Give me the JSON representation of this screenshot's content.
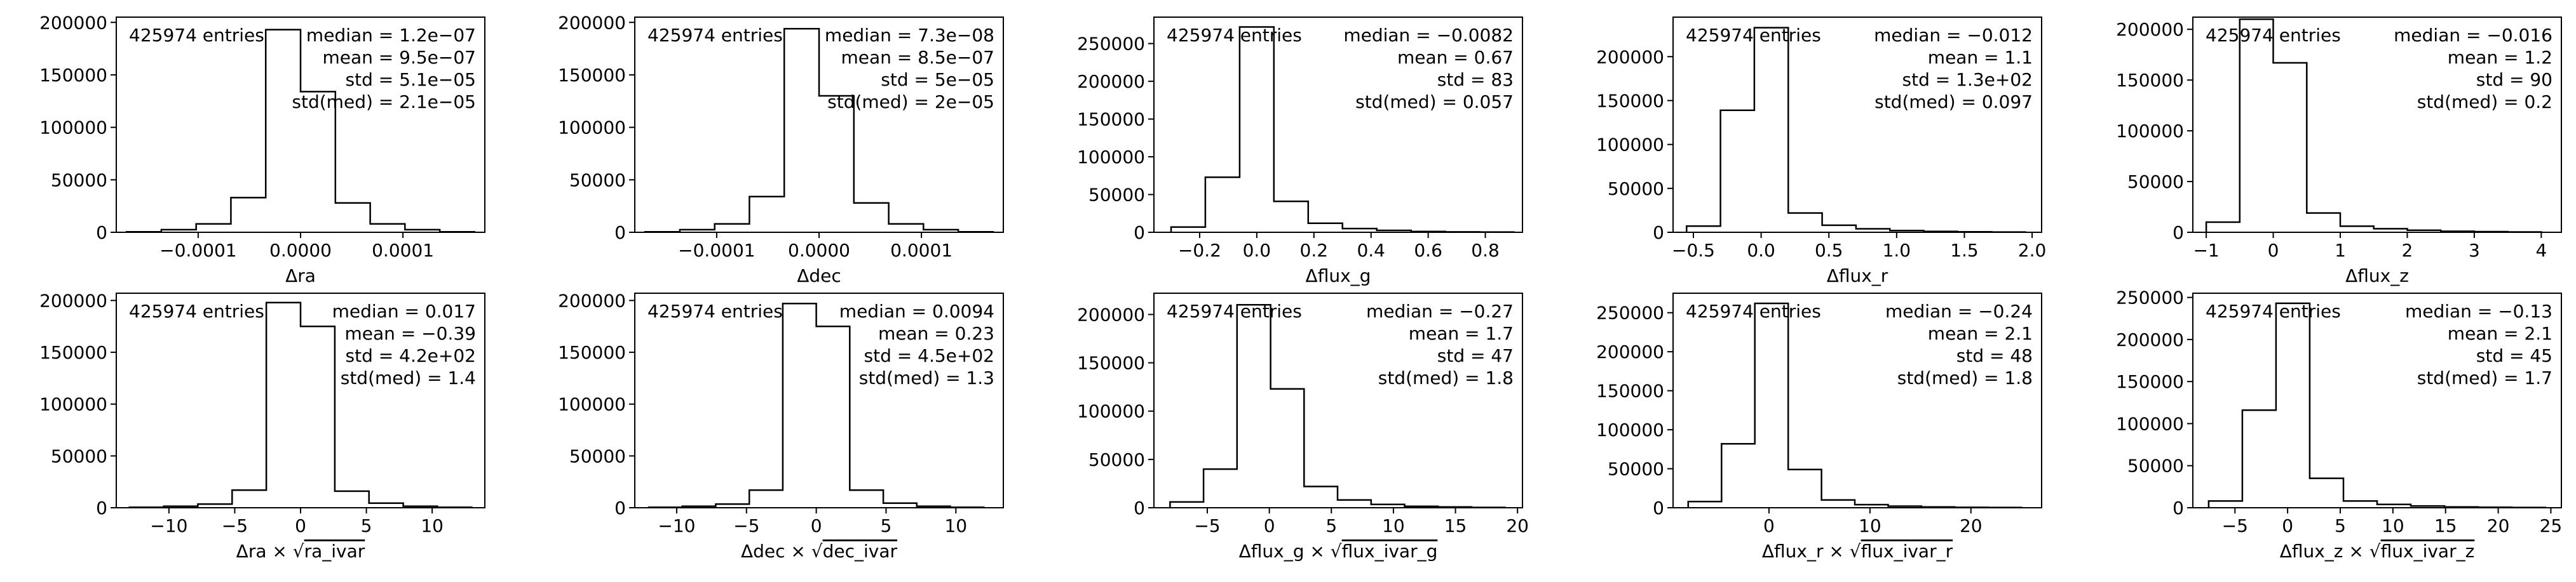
{
  "chart_data": [
    {
      "type": "histogram",
      "entries_label": "425974 entries",
      "stats": [
        "median = 1.2e−07",
        "mean = 9.5e−07",
        "std = 5.1e−05",
        "std(med) = 2.1e−05"
      ],
      "xlabel": "Δra",
      "xlim": [
        -0.00018,
        0.00018
      ],
      "ylim": [
        0,
        205000
      ],
      "xticks": [
        -0.0001,
        0.0,
        0.0001
      ],
      "xtick_labels": [
        "−0.0001",
        "0.0000",
        "0.0001"
      ],
      "yticks": [
        0,
        50000,
        100000,
        150000,
        200000
      ],
      "ytick_labels": [
        "0",
        "50000",
        "100000",
        "150000",
        "200000"
      ],
      "bin_edges": [
        -0.00017,
        -0.000136,
        -0.000102,
        -6.8e-05,
        -3.4e-05,
        0.0,
        3.4e-05,
        6.8e-05,
        0.000102,
        0.000136,
        0.00017
      ],
      "counts": [
        500,
        2500,
        8000,
        33000,
        193000,
        134000,
        28000,
        8000,
        2500,
        500
      ]
    },
    {
      "type": "histogram",
      "entries_label": "425974 entries",
      "stats": [
        "median = 7.3e−08",
        "mean = 8.5e−07",
        "std = 5e−05",
        "std(med) = 2e−05"
      ],
      "xlabel": "Δdec",
      "xlim": [
        -0.00018,
        0.00018
      ],
      "ylim": [
        0,
        205000
      ],
      "xticks": [
        -0.0001,
        0.0,
        0.0001
      ],
      "xtick_labels": [
        "−0.0001",
        "0.0000",
        "0.0001"
      ],
      "yticks": [
        0,
        50000,
        100000,
        150000,
        200000
      ],
      "ytick_labels": [
        "0",
        "50000",
        "100000",
        "150000",
        "200000"
      ],
      "bin_edges": [
        -0.00017,
        -0.000136,
        -0.000102,
        -6.8e-05,
        -3.4e-05,
        0.0,
        3.4e-05,
        6.8e-05,
        0.000102,
        0.000136,
        0.00017
      ],
      "counts": [
        500,
        2500,
        8000,
        34000,
        194000,
        130000,
        28000,
        8000,
        2500,
        500
      ]
    },
    {
      "type": "histogram",
      "entries_label": "425974 entries",
      "stats": [
        "median = −0.0082",
        "mean = 0.67",
        "std = 83",
        "std(med) = 0.057"
      ],
      "xlabel": "Δflux_g",
      "xlim": [
        -0.36,
        0.93
      ],
      "ylim": [
        0,
        285000
      ],
      "xticks": [
        -0.2,
        0.0,
        0.2,
        0.4,
        0.6,
        0.8
      ],
      "xtick_labels": [
        "−0.2",
        "0.0",
        "0.2",
        "0.4",
        "0.6",
        "0.8"
      ],
      "yticks": [
        0,
        50000,
        100000,
        150000,
        200000,
        250000
      ],
      "ytick_labels": [
        "0",
        "50000",
        "100000",
        "150000",
        "200000",
        "250000"
      ],
      "bin_edges": [
        -0.3,
        -0.18,
        -0.06,
        0.06,
        0.18,
        0.3,
        0.42,
        0.54,
        0.66,
        0.78,
        0.9
      ],
      "counts": [
        7000,
        73000,
        272000,
        41000,
        12000,
        5000,
        2500,
        1000,
        500,
        300
      ]
    },
    {
      "type": "histogram",
      "entries_label": "425974 entries",
      "stats": [
        "median = −0.012",
        "mean = 1.1",
        "std = 1.3e+02",
        "std(med) = 0.097"
      ],
      "xlabel": "Δflux_r",
      "xlim": [
        -0.65,
        2.07
      ],
      "ylim": [
        0,
        245000
      ],
      "xticks": [
        -0.5,
        0.0,
        0.5,
        1.0,
        1.5,
        2.0
      ],
      "xtick_labels": [
        "−0.5",
        "0.0",
        "0.5",
        "1.0",
        "1.5",
        "2.0"
      ],
      "yticks": [
        0,
        50000,
        100000,
        150000,
        200000
      ],
      "ytick_labels": [
        "0",
        "50000",
        "100000",
        "150000",
        "200000"
      ],
      "bin_edges": [
        -0.55,
        -0.3,
        -0.05,
        0.2,
        0.45,
        0.7,
        0.95,
        1.2,
        1.45,
        1.7,
        1.95
      ],
      "counts": [
        7000,
        139000,
        233000,
        22000,
        8000,
        4000,
        2000,
        1000,
        500,
        300
      ]
    },
    {
      "type": "histogram",
      "entries_label": "425974 entries",
      "stats": [
        "median = −0.016",
        "mean = 1.2",
        "std = 90",
        "std(med) = 0.2"
      ],
      "xlabel": "Δflux_z",
      "xlim": [
        -1.2,
        4.3
      ],
      "ylim": [
        0,
        212000
      ],
      "xticks": [
        -1,
        0,
        1,
        2,
        3,
        4
      ],
      "xtick_labels": [
        "−1",
        "0",
        "1",
        "2",
        "3",
        "4"
      ],
      "yticks": [
        0,
        50000,
        100000,
        150000,
        200000
      ],
      "ytick_labels": [
        "0",
        "50000",
        "100000",
        "150000",
        "200000"
      ],
      "bin_edges": [
        -1.0,
        -0.5,
        0.0,
        0.5,
        1.0,
        1.5,
        2.0,
        2.5,
        3.0,
        3.5,
        4.0
      ],
      "counts": [
        10000,
        210000,
        167000,
        19000,
        6000,
        3500,
        2000,
        1000,
        600,
        300
      ]
    },
    {
      "type": "histogram",
      "entries_label": "425974 entries",
      "stats": [
        "median = 0.017",
        "mean = −0.39",
        "std = 4.2e+02",
        "std(med) = 1.4"
      ],
      "xlabel": "Δra × √",
      "xlabel_radicand": "ra_ivar",
      "xlim": [
        -14,
        14
      ],
      "ylim": [
        0,
        207000
      ],
      "xticks": [
        -10,
        -5,
        0,
        5,
        10
      ],
      "xtick_labels": [
        "−10",
        "−5",
        "0",
        "5",
        "10"
      ],
      "yticks": [
        0,
        50000,
        100000,
        150000,
        200000
      ],
      "ytick_labels": [
        "0",
        "50000",
        "100000",
        "150000",
        "200000"
      ],
      "bin_edges": [
        -13,
        -10.4,
        -7.8,
        -5.2,
        -2.6,
        0,
        2.6,
        5.2,
        7.8,
        10.4,
        13
      ],
      "counts": [
        500,
        1500,
        3500,
        17000,
        198000,
        175000,
        16000,
        4500,
        1500,
        500
      ]
    },
    {
      "type": "histogram",
      "entries_label": "425974 entries",
      "stats": [
        "median = 0.0094",
        "mean = 0.23",
        "std = 4.5e+02",
        "std(med) = 1.3"
      ],
      "xlabel": "Δdec × √",
      "xlabel_radicand": "dec_ivar",
      "xlim": [
        -13,
        13.4
      ],
      "ylim": [
        0,
        207000
      ],
      "xticks": [
        -10,
        -5,
        0,
        5,
        10
      ],
      "xtick_labels": [
        "−10",
        "−5",
        "0",
        "5",
        "10"
      ],
      "yticks": [
        0,
        50000,
        100000,
        150000,
        200000
      ],
      "ytick_labels": [
        "0",
        "50000",
        "100000",
        "150000",
        "200000"
      ],
      "bin_edges": [
        -12,
        -9.6,
        -7.2,
        -4.8,
        -2.4,
        0,
        2.4,
        4.8,
        7.2,
        9.6,
        12
      ],
      "counts": [
        500,
        1500,
        3500,
        17000,
        197000,
        175000,
        17000,
        4500,
        1500,
        500
      ]
    },
    {
      "type": "histogram",
      "entries_label": "425974 entries",
      "stats": [
        "median = −0.27",
        "mean = 1.7",
        "std = 47",
        "std(med) = 1.8"
      ],
      "xlabel": "Δflux_g × √",
      "xlabel_radicand": "flux_ivar_g",
      "xlim": [
        -9.3,
        20.4
      ],
      "ylim": [
        0,
        222000
      ],
      "xticks": [
        -5,
        0,
        5,
        10,
        15,
        20
      ],
      "xtick_labels": [
        "−5",
        "0",
        "5",
        "10",
        "15",
        "20"
      ],
      "yticks": [
        0,
        50000,
        100000,
        150000,
        200000
      ],
      "ytick_labels": [
        "0",
        "50000",
        "100000",
        "150000",
        "200000"
      ],
      "bin_edges": [
        -8,
        -5.3,
        -2.6,
        0.1,
        2.8,
        5.5,
        8.2,
        10.9,
        13.6,
        16.3,
        19
      ],
      "counts": [
        6000,
        40000,
        210000,
        123000,
        22000,
        8000,
        3500,
        1500,
        800,
        300
      ]
    },
    {
      "type": "histogram",
      "entries_label": "425974 entries",
      "stats": [
        "median = −0.24",
        "mean = 2.1",
        "std = 48",
        "std(med) = 1.8"
      ],
      "xlabel": "Δflux_r × √",
      "xlabel_radicand": "flux_ivar_r",
      "xlim": [
        -9.5,
        27
      ],
      "ylim": [
        0,
        275000
      ],
      "xticks": [
        0,
        10,
        20
      ],
      "xtick_labels": [
        "0",
        "10",
        "20"
      ],
      "yticks": [
        0,
        50000,
        100000,
        150000,
        200000,
        250000
      ],
      "ytick_labels": [
        "0",
        "50000",
        "100000",
        "150000",
        "200000",
        "250000"
      ],
      "bin_edges": [
        -8,
        -4.7,
        -1.4,
        1.9,
        5.2,
        8.5,
        11.8,
        15.1,
        18.4,
        21.7,
        25
      ],
      "counts": [
        8000,
        82000,
        262000,
        49000,
        10000,
        4000,
        2000,
        1000,
        500,
        300
      ]
    },
    {
      "type": "histogram",
      "entries_label": "425974 entries",
      "stats": [
        "median = −0.13",
        "mean = 2.1",
        "std = 45",
        "std(med) = 1.7"
      ],
      "xlabel": "Δflux_z × √",
      "xlabel_radicand": "flux_ivar_z",
      "xlim": [
        -9,
        26
      ],
      "ylim": [
        0,
        255000
      ],
      "xticks": [
        -5,
        0,
        5,
        10,
        15,
        20,
        25
      ],
      "xtick_labels": [
        "−5",
        "0",
        "5",
        "10",
        "15",
        "20",
        "25"
      ],
      "yticks": [
        0,
        50000,
        100000,
        150000,
        200000,
        250000
      ],
      "ytick_labels": [
        "0",
        "50000",
        "100000",
        "150000",
        "200000",
        "250000"
      ],
      "bin_edges": [
        -7.5,
        -4.3,
        -1.1,
        2.1,
        5.3,
        8.5,
        11.7,
        14.9,
        18.1,
        21.3,
        24.5
      ],
      "counts": [
        8000,
        116000,
        243000,
        35000,
        8000,
        4000,
        2000,
        1000,
        500,
        300
      ]
    }
  ]
}
